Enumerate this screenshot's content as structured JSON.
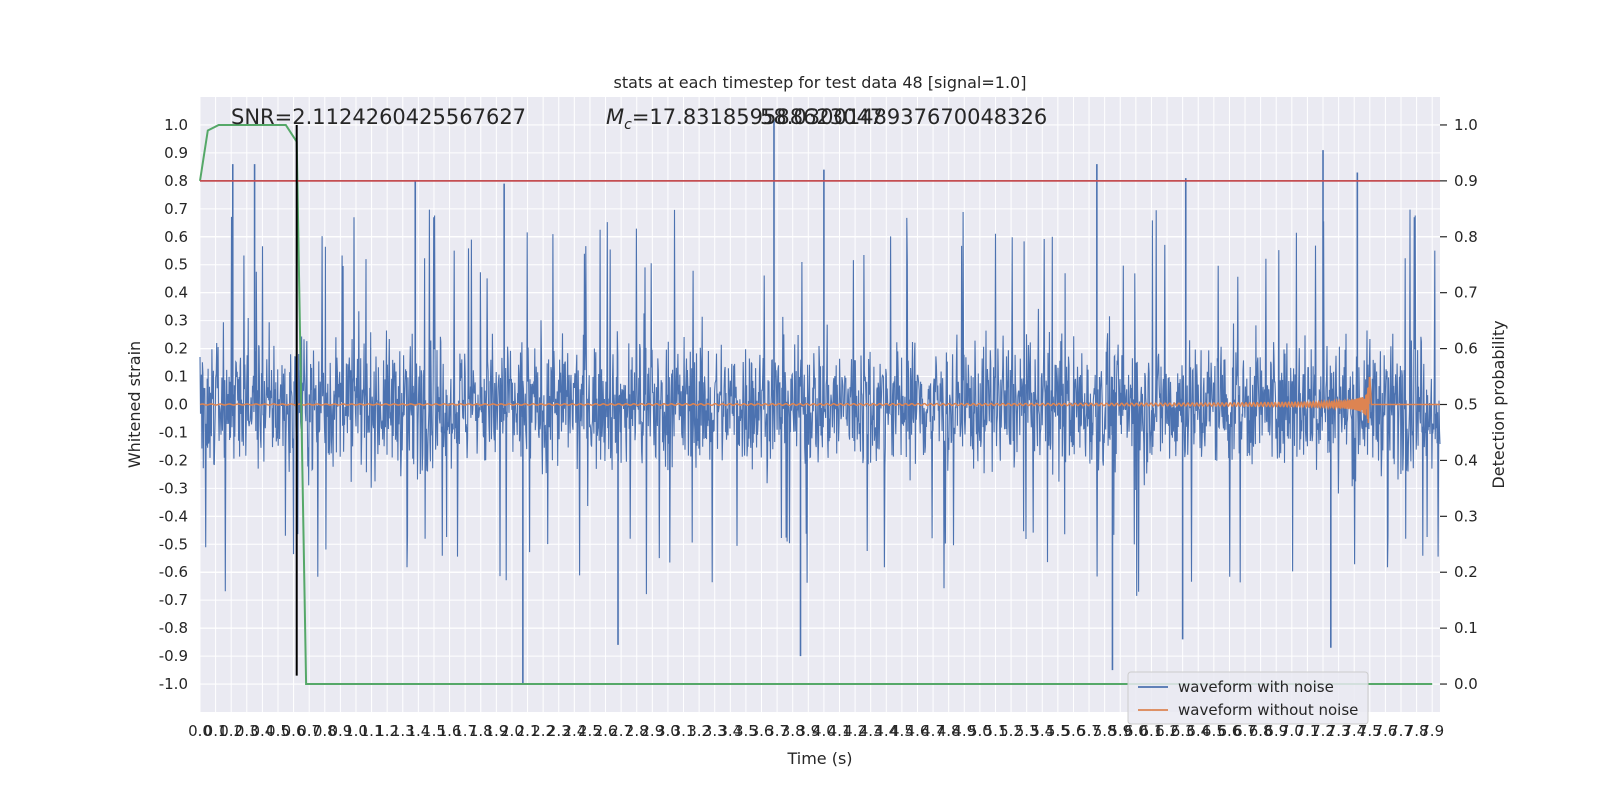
{
  "chart_data": {
    "type": "line",
    "title": "stats at each timestep for test data 48 [signal=1.0]",
    "xlabel": "Time (s)",
    "ylabel": "Whitened strain",
    "y2label": "Detection probability",
    "annotations": {
      "snr": "SNR=2.1124260425567627",
      "mc": "=17.831859588623047",
      "mc_symbol": "M",
      "mc_sub": "c",
      "overlap": "58.0300148937670048326"
    },
    "xlim": [
      0,
      7.95
    ],
    "ylim": [
      -1.1,
      1.1
    ],
    "y2lim": [
      -0.05,
      1.05
    ],
    "x_ticks": [
      "0.0",
      "0.1",
      "0.2",
      "0.3",
      "0.4",
      "0.5",
      "0.6",
      "0.7",
      "0.8",
      "0.9",
      "1.0",
      "1.1",
      "1.2",
      "1.3",
      "1.4",
      "1.5",
      "1.6",
      "1.7",
      "1.8",
      "1.9",
      "2.0",
      "2.1",
      "2.2",
      "2.3",
      "2.4",
      "2.5",
      "2.6",
      "2.7",
      "2.8",
      "2.9",
      "3.0",
      "3.1",
      "3.2",
      "3.3",
      "3.4",
      "3.5",
      "3.6",
      "3.7",
      "3.8",
      "3.9",
      "4.0",
      "4.1",
      "4.2",
      "4.3",
      "4.4",
      "4.5",
      "4.6",
      "4.7",
      "4.8",
      "4.9",
      "5.0",
      "5.1",
      "5.2",
      "5.3",
      "5.4",
      "5.5",
      "5.6",
      "5.7",
      "5.8",
      "5.9",
      "6.0",
      "6.1",
      "6.2",
      "6.3",
      "6.4",
      "6.5",
      "6.6",
      "6.7",
      "6.8",
      "6.9",
      "7.0",
      "7.1",
      "7.2",
      "7.3",
      "7.4",
      "7.5",
      "7.6",
      "7.7",
      "7.8",
      "7.9"
    ],
    "y_ticks": [
      "-1.0",
      "-0.9",
      "-0.8",
      "-0.7",
      "-0.6",
      "-0.5",
      "-0.4",
      "-0.3",
      "-0.2",
      "-0.1",
      "0.0",
      "0.1",
      "0.2",
      "0.3",
      "0.4",
      "0.5",
      "0.6",
      "0.7",
      "0.8",
      "0.9",
      "1.0"
    ],
    "y2_ticks": [
      "0.0",
      "0.1",
      "0.2",
      "0.3",
      "0.4",
      "0.5",
      "0.6",
      "0.7",
      "0.8",
      "0.9",
      "1.0"
    ],
    "legend": {
      "placement": "lower right",
      "entries": [
        "waveform with noise",
        "waveform without noise"
      ]
    },
    "grid": true,
    "series": [
      {
        "name": "waveform with noise",
        "axis": "left",
        "color": "#4c72b0",
        "style": "dense noise band",
        "typical_envelope": [
          -0.4,
          0.45
        ],
        "peaks": [
          {
            "x": 0.21,
            "y": 0.86
          },
          {
            "x": 0.35,
            "y": 0.86
          },
          {
            "x": 1.38,
            "y": 0.8
          },
          {
            "x": 1.95,
            "y": 0.79
          },
          {
            "x": 3.68,
            "y": 1.02
          },
          {
            "x": 4.0,
            "y": 0.84
          },
          {
            "x": 5.75,
            "y": 0.86
          },
          {
            "x": 6.32,
            "y": 0.81
          },
          {
            "x": 7.2,
            "y": 0.91
          },
          {
            "x": 7.42,
            "y": 0.83
          }
        ],
        "troughs": [
          {
            "x": 2.07,
            "y": -1.0
          },
          {
            "x": 2.68,
            "y": -0.86
          },
          {
            "x": 3.85,
            "y": -0.9
          },
          {
            "x": 5.85,
            "y": -0.95
          },
          {
            "x": 6.3,
            "y": -0.84
          },
          {
            "x": 7.25,
            "y": -0.87
          }
        ]
      },
      {
        "name": "waveform without noise",
        "axis": "left",
        "color": "#dd8452",
        "style": "chirp",
        "chirp_end_x": 7.5,
        "chirp_peak_amplitude": [
          0.09,
          -0.1
        ]
      },
      {
        "name": "",
        "axis": "right",
        "color": "#55a868",
        "points": [
          [
            0.0,
            0.9
          ],
          [
            0.05,
            0.99
          ],
          [
            0.12,
            1.0
          ],
          [
            0.55,
            1.0
          ],
          [
            0.62,
            0.97
          ],
          [
            0.68,
            0.0
          ],
          [
            7.9,
            0.0
          ]
        ]
      },
      {
        "name": "",
        "axis": "right",
        "color": "#c44e52",
        "type": "hline",
        "y": 0.9
      },
      {
        "name": "",
        "axis": "left",
        "color": "#000000",
        "type": "vline",
        "x": 0.62,
        "y_range": [
          -0.97,
          1.0
        ]
      }
    ]
  }
}
